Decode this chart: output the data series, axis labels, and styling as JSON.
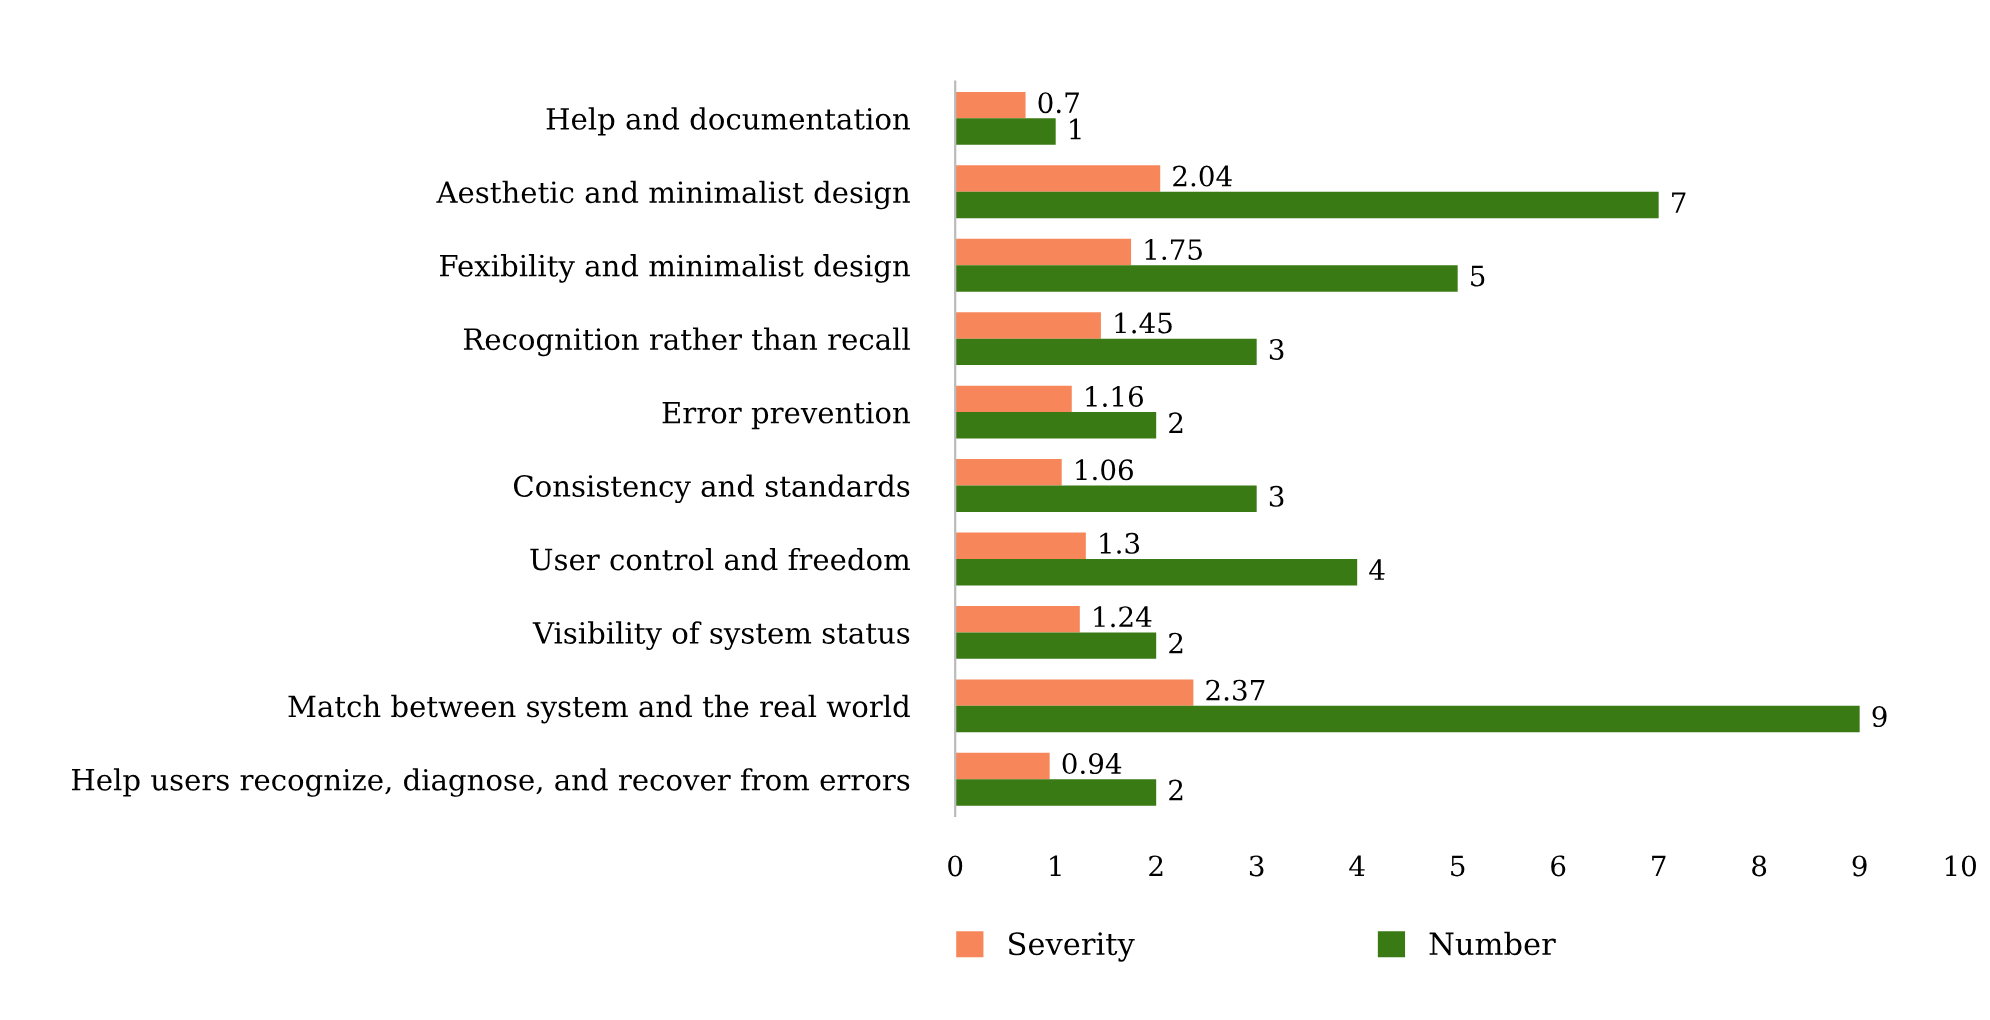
{
  "chart_data": {
    "type": "bar",
    "orientation": "horizontal",
    "categories": [
      "Help and documentation",
      "Aesthetic and minimalist design",
      "Fexibility and minimalist design",
      "Recognition rather than recall",
      "Error prevention",
      "Consistency and standards",
      "User control and freedom",
      "Visibility of system status",
      "Match between system and the real world",
      "Help users recognize, diagnose, and recover from errors"
    ],
    "series": [
      {
        "name": "Severity",
        "color": "#f7875a",
        "values": [
          0.7,
          2.04,
          1.75,
          1.45,
          1.16,
          1.06,
          1.3,
          1.24,
          2.37,
          0.94
        ]
      },
      {
        "name": "Number",
        "color": "#3a7a14",
        "values": [
          1,
          7,
          5,
          3,
          2,
          3,
          4,
          2,
          9,
          2
        ]
      }
    ],
    "xlim": [
      0,
      10
    ],
    "xticks": [
      0,
      1,
      2,
      3,
      4,
      5,
      6,
      7,
      8,
      9,
      10
    ],
    "grid": false,
    "legend": "bottom",
    "data_labels": true
  }
}
